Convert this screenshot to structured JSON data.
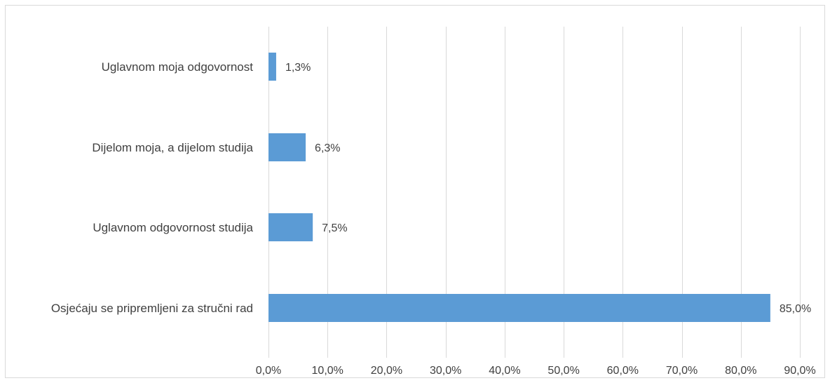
{
  "chart_data": {
    "type": "bar",
    "orientation": "horizontal",
    "title": "",
    "xlabel": "",
    "ylabel": "",
    "categories": [
      "Uglavnom moja odgovornost",
      "Dijelom moja, a dijelom studija",
      "Uglavnom odgovornost studija",
      "Osjećaju se pripremljeni za stručni rad"
    ],
    "values": [
      1.3,
      6.3,
      7.5,
      85.0
    ],
    "data_labels": [
      "1,3%",
      "6,3%",
      "7,5%",
      "85,0%"
    ],
    "xlim": [
      0,
      90
    ],
    "x_ticks": [
      0,
      10,
      20,
      30,
      40,
      50,
      60,
      70,
      80,
      90
    ],
    "x_tick_labels": [
      "0,0%",
      "10,0%",
      "20,0%",
      "30,0%",
      "40,0%",
      "50,0%",
      "60,0%",
      "70,0%",
      "80,0%",
      "90,0%"
    ],
    "grid": true,
    "legend": "none",
    "colors": {
      "bar": "#5b9bd5",
      "grid": "#d9d9d9",
      "text": "#404040"
    }
  }
}
